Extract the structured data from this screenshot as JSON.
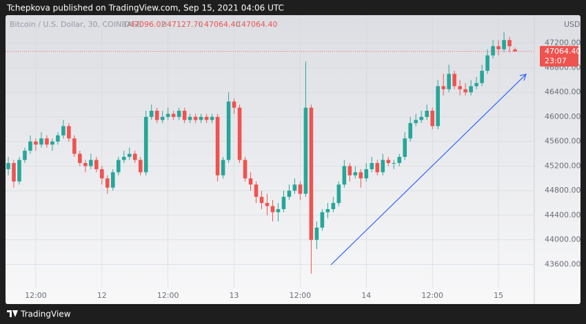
{
  "header": {
    "published": "Tchepkova published on TradingView.com, Sep 15, 2021 04:06 UTC"
  },
  "footer": {
    "brand": "TradingView"
  },
  "chart_data": {
    "type": "candlestick",
    "title": "Bitcoin / U.S. Dollar, 30, COINBASE",
    "ohlc_legend": [
      {
        "label": "O",
        "value": "47096.02"
      },
      {
        "label": "H",
        "value": "47127.70"
      },
      {
        "label": "L",
        "value": "47064.40"
      },
      {
        "label": "C",
        "value": "47064.40"
      }
    ],
    "currency": "USD",
    "last_price": {
      "value": 47064.4,
      "label": "47064.40"
    },
    "countdown": "23:07",
    "up_color": "#26a69a",
    "down_color": "#ef5350",
    "grid": true,
    "xlim": [
      -0.5,
      95.5
    ],
    "xticks": [
      {
        "value": 5,
        "label": "12:00"
      },
      {
        "value": 17,
        "label": "12"
      },
      {
        "value": 29,
        "label": "12:00"
      },
      {
        "value": 41,
        "label": "13"
      },
      {
        "value": 53,
        "label": "12:00"
      },
      {
        "value": 65,
        "label": "14"
      },
      {
        "value": 77,
        "label": "12:00"
      },
      {
        "value": 89,
        "label": "15"
      }
    ],
    "ylim": [
      43225,
      47655
    ],
    "yticks": [
      {
        "value": 43600,
        "label": "43600.00"
      },
      {
        "value": 44000,
        "label": "44000.00"
      },
      {
        "value": 44400,
        "label": "44400.00"
      },
      {
        "value": 44800,
        "label": "44800.00"
      },
      {
        "value": 45200,
        "label": "45200.00"
      },
      {
        "value": 45600,
        "label": "45600.00"
      },
      {
        "value": 46000,
        "label": "46000.00"
      },
      {
        "value": 46400,
        "label": "46400.00"
      },
      {
        "value": 46800,
        "label": "46800.00"
      },
      {
        "value": 47200,
        "label": "47200.00"
      }
    ],
    "candles": [
      [
        45150,
        45350,
        45050,
        45250
      ],
      [
        45250,
        45300,
        44850,
        44950
      ],
      [
        44950,
        45350,
        44900,
        45300
      ],
      [
        45300,
        45500,
        45250,
        45450
      ],
      [
        45450,
        45700,
        45400,
        45600
      ],
      [
        45600,
        45650,
        45450,
        45550
      ],
      [
        45550,
        45750,
        45500,
        45650
      ],
      [
        45650,
        45700,
        45500,
        45550
      ],
      [
        45550,
        45650,
        45450,
        45600
      ],
      [
        45600,
        45750,
        45550,
        45700
      ],
      [
        45700,
        45950,
        45650,
        45850
      ],
      [
        45850,
        45900,
        45600,
        45650
      ],
      [
        45650,
        45700,
        45350,
        45400
      ],
      [
        45400,
        45450,
        45200,
        45250
      ],
      [
        45250,
        45300,
        45100,
        45200
      ],
      [
        45200,
        45400,
        45150,
        45300
      ],
      [
        45300,
        45350,
        45100,
        45150
      ],
      [
        45150,
        45200,
        44900,
        45000
      ],
      [
        45000,
        45050,
        44750,
        44850
      ],
      [
        44850,
        45150,
        44800,
        45100
      ],
      [
        45100,
        45350,
        45050,
        45300
      ],
      [
        45300,
        45450,
        45250,
        45350
      ],
      [
        45350,
        45500,
        45300,
        45400
      ],
      [
        45400,
        45450,
        45250,
        45300
      ],
      [
        45300,
        45350,
        45050,
        45100
      ],
      [
        45100,
        46100,
        45050,
        46000
      ],
      [
        46000,
        46200,
        45950,
        46100
      ],
      [
        46100,
        46150,
        45900,
        45950
      ],
      [
        45950,
        46100,
        45900,
        46000
      ],
      [
        46000,
        46150,
        45950,
        46050
      ],
      [
        46050,
        46100,
        45950,
        46000
      ],
      [
        46000,
        46150,
        45950,
        46100
      ],
      [
        46100,
        46150,
        45900,
        45950
      ],
      [
        45950,
        46050,
        45900,
        46000
      ],
      [
        46000,
        46050,
        45900,
        45950
      ],
      [
        45950,
        46050,
        45900,
        46000
      ],
      [
        46000,
        46050,
        45900,
        45950
      ],
      [
        45950,
        46050,
        45900,
        46000
      ],
      [
        46000,
        46050,
        44950,
        45050
      ],
      [
        45050,
        45350,
        45000,
        45300
      ],
      [
        45300,
        46400,
        45250,
        46250
      ],
      [
        46250,
        46300,
        46050,
        46150
      ],
      [
        46150,
        46200,
        45250,
        45300
      ],
      [
        45300,
        45350,
        44950,
        45000
      ],
      [
        45000,
        45100,
        44800,
        44900
      ],
      [
        44900,
        44950,
        44600,
        44700
      ],
      [
        44700,
        44800,
        44500,
        44600
      ],
      [
        44600,
        44750,
        44400,
        44550
      ],
      [
        44550,
        44650,
        44300,
        44450
      ],
      [
        44450,
        44600,
        44300,
        44500
      ],
      [
        44500,
        44800,
        44450,
        44700
      ],
      [
        44700,
        44900,
        44650,
        44800
      ],
      [
        44800,
        45000,
        44750,
        44900
      ],
      [
        44900,
        44950,
        44650,
        44750
      ],
      [
        44750,
        46900,
        44700,
        46150
      ],
      [
        46150,
        46200,
        43450,
        44000
      ],
      [
        44000,
        44300,
        43850,
        44200
      ],
      [
        44200,
        44500,
        44150,
        44450
      ],
      [
        44450,
        44600,
        44350,
        44500
      ],
      [
        44500,
        44700,
        44450,
        44600
      ],
      [
        44600,
        44950,
        44550,
        44900
      ],
      [
        44900,
        45300,
        44850,
        45200
      ],
      [
        45200,
        45250,
        44950,
        45050
      ],
      [
        45050,
        45200,
        45000,
        45100
      ],
      [
        45100,
        45150,
        44850,
        45000
      ],
      [
        45000,
        45250,
        44950,
        45150
      ],
      [
        45150,
        45350,
        45100,
        45250
      ],
      [
        45250,
        45300,
        45050,
        45100
      ],
      [
        45100,
        45400,
        45050,
        45300
      ],
      [
        45300,
        45350,
        45200,
        45250
      ],
      [
        45250,
        45300,
        45150,
        45250
      ],
      [
        45250,
        45400,
        45200,
        45350
      ],
      [
        45350,
        45750,
        45300,
        45650
      ],
      [
        45650,
        46000,
        45600,
        45900
      ],
      [
        45900,
        46050,
        45850,
        45950
      ],
      [
        45950,
        46100,
        45900,
        46000
      ],
      [
        46000,
        46200,
        45950,
        46100
      ],
      [
        46100,
        46150,
        45800,
        45850
      ],
      [
        45850,
        46600,
        45800,
        46500
      ],
      [
        46500,
        46700,
        46350,
        46450
      ],
      [
        46450,
        46850,
        46400,
        46700
      ],
      [
        46700,
        46750,
        46450,
        46500
      ],
      [
        46500,
        46600,
        46350,
        46450
      ],
      [
        46450,
        46550,
        46350,
        46400
      ],
      [
        46400,
        46600,
        46350,
        46500
      ],
      [
        46500,
        46650,
        46450,
        46550
      ],
      [
        46550,
        46850,
        46500,
        46750
      ],
      [
        46750,
        47100,
        46700,
        47000
      ],
      [
        47000,
        47250,
        46950,
        47150
      ],
      [
        47150,
        47250,
        47000,
        47100
      ],
      [
        47100,
        47380,
        47050,
        47250
      ],
      [
        47250,
        47300,
        47050,
        47150
      ],
      [
        47096.02,
        47127.7,
        47064.4,
        47064.4
      ]
    ]
  }
}
